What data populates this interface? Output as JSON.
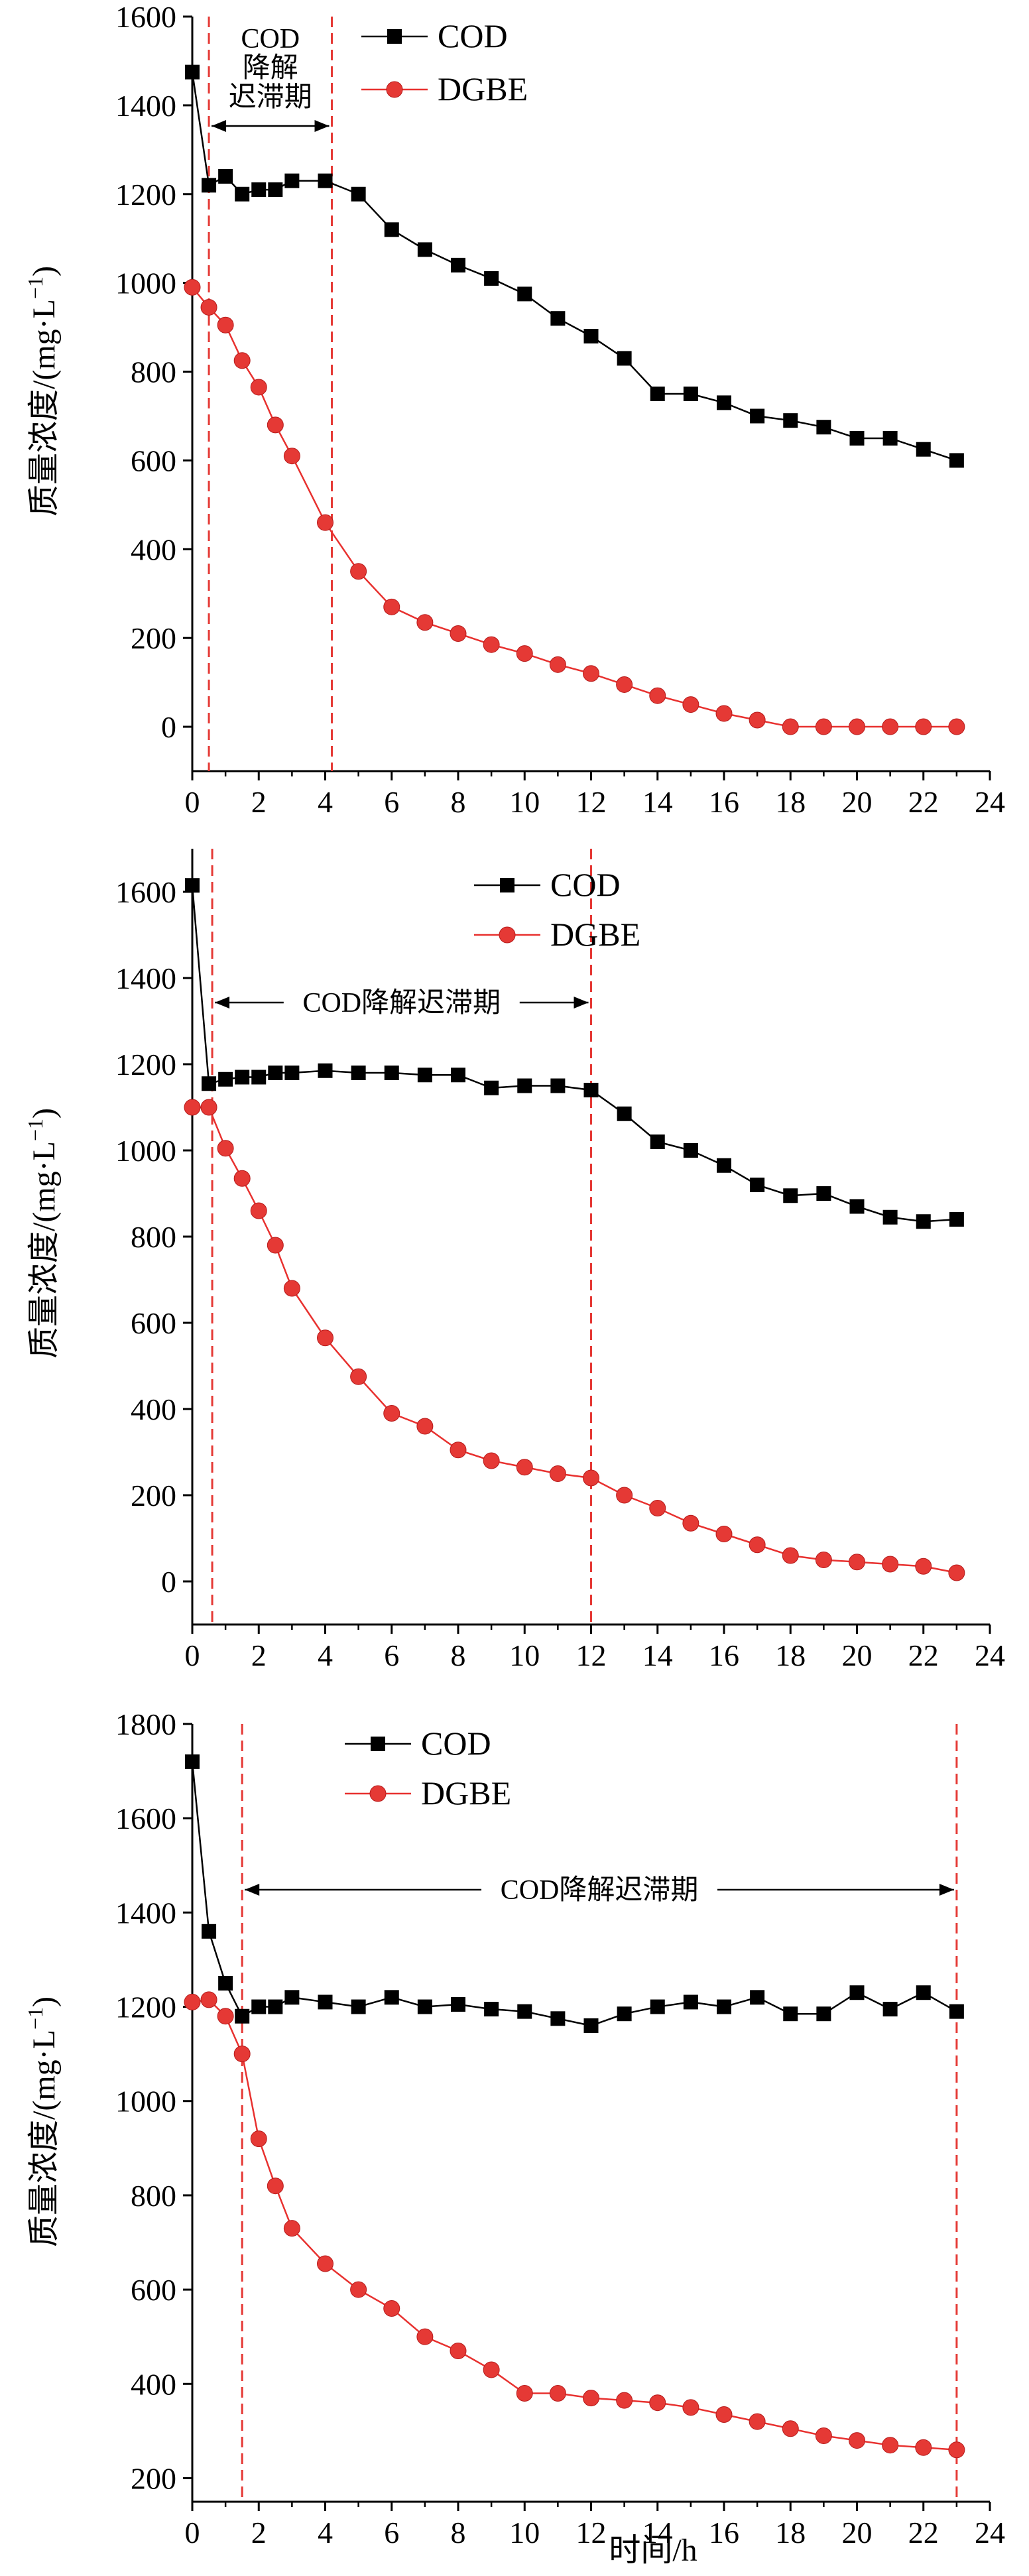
{
  "colors": {
    "cod": "#000000",
    "dgbe": "#e8312f",
    "dgbe_marker": "#e53935",
    "lag_lines": "#e53935",
    "axes": "#000000"
  },
  "figure": {
    "xlabel": "时间/h"
  },
  "chart_data": [
    {
      "type": "line",
      "ylabel": "质量浓度/(mg·L",
      "ylabel_sup": "−1",
      "ylabel_tail": ")",
      "xlim": [
        0,
        24
      ],
      "ylim": [
        -100,
        1600
      ],
      "xticks": [
        "0",
        "2",
        "4",
        "6",
        "8",
        "10",
        "12",
        "14",
        "16",
        "18",
        "20",
        "22",
        "24"
      ],
      "yticks": [
        "0",
        "200",
        "400",
        "600",
        "800",
        "1000",
        "1200",
        "1400",
        "1600"
      ],
      "ytick_values": [
        0,
        200,
        400,
        600,
        800,
        1000,
        1200,
        1400,
        1600
      ],
      "legend": {
        "position": "top-right",
        "entries": [
          "COD",
          "DGBE"
        ]
      },
      "lag_period": {
        "start": 0.5,
        "end": 4.2,
        "label_lines": [
          "COD",
          "降解",
          "迟滞期"
        ]
      },
      "series": [
        {
          "name": "COD",
          "marker": "square",
          "x": [
            0,
            0.5,
            1,
            1.5,
            2,
            2.5,
            3,
            4,
            5,
            6,
            7,
            8,
            9,
            10,
            11,
            12,
            13,
            14,
            15,
            16,
            17,
            18,
            19,
            20,
            21,
            22,
            23
          ],
          "y": [
            1475,
            1220,
            1240,
            1200,
            1210,
            1210,
            1230,
            1230,
            1200,
            1120,
            1075,
            1040,
            1010,
            975,
            920,
            880,
            830,
            750,
            750,
            730,
            700,
            690,
            675,
            650,
            650,
            625,
            600
          ]
        },
        {
          "name": "DGBE",
          "marker": "circle",
          "x": [
            0,
            0.5,
            1,
            1.5,
            2,
            2.5,
            3,
            4,
            5,
            6,
            7,
            8,
            9,
            10,
            11,
            12,
            13,
            14,
            15,
            16,
            17,
            18,
            19,
            20,
            21,
            22,
            23
          ],
          "y": [
            990,
            945,
            905,
            825,
            765,
            680,
            610,
            460,
            350,
            270,
            235,
            210,
            185,
            165,
            140,
            120,
            95,
            70,
            50,
            30,
            15,
            0,
            0,
            0,
            0,
            0,
            0
          ]
        }
      ]
    },
    {
      "type": "line",
      "ylabel": "质量浓度/(mg·L",
      "ylabel_sup": "−1",
      "ylabel_tail": ")",
      "xlim": [
        0,
        24
      ],
      "ylim": [
        -100,
        1700
      ],
      "xticks": [
        "0",
        "2",
        "4",
        "6",
        "8",
        "10",
        "12",
        "14",
        "16",
        "18",
        "20",
        "22",
        "24"
      ],
      "yticks": [
        "0",
        "200",
        "400",
        "600",
        "800",
        "1000",
        "1200",
        "1400",
        "1600"
      ],
      "ytick_values": [
        0,
        200,
        400,
        600,
        800,
        1000,
        1200,
        1400,
        1600
      ],
      "legend": {
        "position": "top-center",
        "entries": [
          "COD",
          "DGBE"
        ]
      },
      "lag_period": {
        "start": 0.6,
        "end": 12,
        "label_lines": [
          "COD降解迟滞期"
        ]
      },
      "series": [
        {
          "name": "COD",
          "marker": "square",
          "x": [
            0,
            0.5,
            1,
            1.5,
            2,
            2.5,
            3,
            4,
            5,
            6,
            7,
            8,
            9,
            10,
            11,
            12,
            13,
            14,
            15,
            16,
            17,
            18,
            19,
            20,
            21,
            22,
            23
          ],
          "y": [
            1615,
            1155,
            1165,
            1170,
            1170,
            1180,
            1180,
            1185,
            1180,
            1180,
            1175,
            1175,
            1145,
            1150,
            1150,
            1140,
            1085,
            1020,
            1000,
            965,
            920,
            895,
            900,
            870,
            845,
            835,
            840
          ]
        },
        {
          "name": "DGBE",
          "marker": "circle",
          "x": [
            0,
            0.5,
            1,
            1.5,
            2,
            2.5,
            3,
            4,
            5,
            6,
            7,
            8,
            9,
            10,
            11,
            12,
            13,
            14,
            15,
            16,
            17,
            18,
            19,
            20,
            21,
            22,
            23
          ],
          "y": [
            1100,
            1100,
            1005,
            935,
            860,
            780,
            680,
            565,
            475,
            390,
            360,
            305,
            280,
            265,
            250,
            240,
            200,
            170,
            135,
            110,
            85,
            60,
            50,
            45,
            40,
            35,
            20
          ]
        }
      ]
    },
    {
      "type": "line",
      "ylabel": "质量浓度/(mg·L",
      "ylabel_sup": "−1",
      "ylabel_tail": ")",
      "xlim": [
        0,
        24
      ],
      "ylim": [
        150,
        1800
      ],
      "xticks": [
        "0",
        "2",
        "4",
        "6",
        "8",
        "10",
        "12",
        "14",
        "16",
        "18",
        "20",
        "22",
        "24"
      ],
      "yticks": [
        "200",
        "400",
        "600",
        "800",
        "1000",
        "1200",
        "1400",
        "1600",
        "1800"
      ],
      "ytick_values": [
        200,
        400,
        600,
        800,
        1000,
        1200,
        1400,
        1600,
        1800
      ],
      "legend": {
        "position": "top-left",
        "entries": [
          "COD",
          "DGBE"
        ]
      },
      "lag_period": {
        "start": 1.5,
        "end": 23,
        "label_lines": [
          "COD降解迟滞期"
        ]
      },
      "series": [
        {
          "name": "COD",
          "marker": "square",
          "x": [
            0,
            0.5,
            1,
            1.5,
            2,
            2.5,
            3,
            4,
            5,
            6,
            7,
            8,
            9,
            10,
            11,
            12,
            13,
            14,
            15,
            16,
            17,
            18,
            19,
            20,
            21,
            22,
            23
          ],
          "y": [
            1720,
            1360,
            1250,
            1180,
            1200,
            1200,
            1220,
            1210,
            1200,
            1220,
            1200,
            1205,
            1195,
            1190,
            1175,
            1160,
            1185,
            1200,
            1210,
            1200,
            1220,
            1185,
            1185,
            1230,
            1195,
            1230,
            1190
          ]
        },
        {
          "name": "DGBE",
          "marker": "circle",
          "x": [
            0,
            0.5,
            1,
            1.5,
            2,
            2.5,
            3,
            4,
            5,
            6,
            7,
            8,
            9,
            10,
            11,
            12,
            13,
            14,
            15,
            16,
            17,
            18,
            19,
            20,
            21,
            22,
            23
          ],
          "y": [
            1210,
            1215,
            1180,
            1100,
            920,
            820,
            730,
            655,
            600,
            560,
            500,
            470,
            430,
            380,
            380,
            370,
            365,
            360,
            350,
            335,
            320,
            305,
            290,
            280,
            270,
            265,
            260
          ]
        }
      ]
    }
  ]
}
